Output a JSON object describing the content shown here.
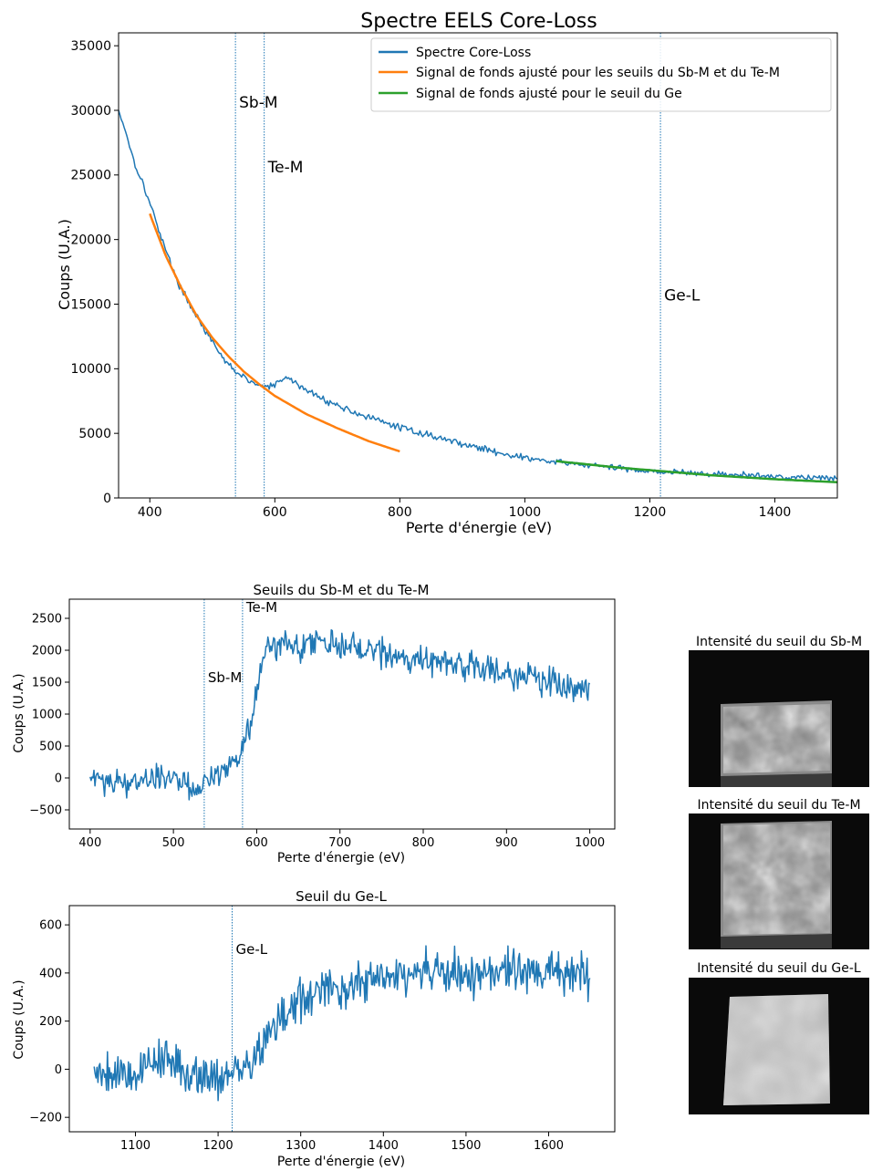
{
  "colors": {
    "core_loss": "#1f77b4",
    "fit_sbte": "#ff7f0e",
    "fit_ge": "#2ca02c",
    "edge_line": "#1f77b4",
    "map_background": "#0a0a0a"
  },
  "chart_data": [
    {
      "id": "main",
      "type": "line",
      "title": "Spectre EELS Core-Loss",
      "xlabel": "Perte d'énergie (eV)",
      "ylabel": "Coups (U.A.)",
      "xlim": [
        350,
        1500
      ],
      "ylim": [
        0,
        36000
      ],
      "xticks": [
        400,
        600,
        800,
        1000,
        1200,
        1400
      ],
      "yticks": [
        0,
        5000,
        10000,
        15000,
        20000,
        25000,
        30000,
        35000
      ],
      "grid": false,
      "legend": "top-right",
      "series": [
        {
          "name": "Spectre Core-Loss",
          "color": "#1f77b4",
          "x": [
            350,
            360,
            375,
            390,
            400,
            420,
            440,
            460,
            480,
            500,
            520,
            540,
            560,
            580,
            600,
            610,
            620,
            630,
            640,
            660,
            680,
            700,
            740,
            780,
            820,
            860,
            900,
            950,
            1000,
            1050,
            1100,
            1150,
            1200,
            1250,
            1300,
            1350,
            1400,
            1450,
            1500
          ],
          "y": [
            30000,
            28600,
            26000,
            24200,
            22800,
            20000,
            17200,
            15300,
            13700,
            12000,
            10600,
            9700,
            9000,
            8600,
            8700,
            9100,
            9300,
            9100,
            8600,
            8100,
            7600,
            7150,
            6400,
            5750,
            5200,
            4700,
            4200,
            3600,
            3100,
            2750,
            2550,
            2300,
            2100,
            1950,
            1850,
            1750,
            1650,
            1600,
            1550
          ],
          "noise": 250
        },
        {
          "name": "Signal de fonds ajusté pour les seuils du Sb-M et du Te-M",
          "color": "#ff7f0e",
          "x": [
            400,
            425,
            450,
            475,
            500,
            525,
            550,
            575,
            600,
            650,
            700,
            750,
            800
          ],
          "y": [
            22000,
            18800,
            16300,
            14100,
            12400,
            11000,
            9800,
            8800,
            7900,
            6500,
            5400,
            4400,
            3600
          ]
        },
        {
          "name": "Signal de fonds ajusté pour le seuil du Ge",
          "color": "#2ca02c",
          "x": [
            1050,
            1100,
            1150,
            1200,
            1250,
            1300,
            1350,
            1400,
            1450,
            1500
          ],
          "y": [
            2850,
            2600,
            2350,
            2150,
            1950,
            1750,
            1600,
            1450,
            1330,
            1220
          ]
        }
      ],
      "annotations": [
        {
          "text": "Sb-M",
          "x": 537,
          "y": 30200
        },
        {
          "text": "Te-M",
          "x": 583,
          "y": 25200
        },
        {
          "text": "Ge-L",
          "x": 1217,
          "y": 15300
        }
      ],
      "vlines": [
        537,
        583,
        1217
      ]
    },
    {
      "id": "sbte",
      "type": "line",
      "title": "Seuils du Sb-M et du Te-M",
      "xlabel": "Perte d'énergie (eV)",
      "ylabel": "Coups (U.A.)",
      "xlim": [
        375,
        1030
      ],
      "ylim": [
        -800,
        2800
      ],
      "xticks": [
        400,
        500,
        600,
        700,
        800,
        900,
        1000
      ],
      "yticks": [
        -500,
        0,
        500,
        1000,
        1500,
        2000,
        2500
      ],
      "grid": false,
      "series": [
        {
          "name": "",
          "color": "#1f77b4",
          "x": [
            400,
            450,
            500,
            530,
            555,
            575,
            585,
            595,
            605,
            615,
            625,
            650,
            680,
            700,
            750,
            800,
            850,
            900,
            950,
            1000
          ],
          "y": [
            0,
            -50,
            0,
            -200,
            100,
            300,
            550,
            1000,
            1700,
            2000,
            2150,
            2100,
            2200,
            2050,
            1950,
            1850,
            1750,
            1650,
            1500,
            1400
          ],
          "noise": 230
        }
      ],
      "annotations": [
        {
          "text": "Sb-M",
          "x": 537,
          "y": 1500
        },
        {
          "text": "Te-M",
          "x": 583,
          "y": 2600
        }
      ],
      "vlines": [
        537,
        583
      ]
    },
    {
      "id": "ge",
      "type": "line",
      "title": "Seuil du Ge-L",
      "xlabel": "Perte d'énergie (eV)",
      "ylabel": "Coups (U.A.)",
      "xlim": [
        1020,
        1680
      ],
      "ylim": [
        -260,
        680
      ],
      "xticks": [
        1100,
        1200,
        1300,
        1400,
        1500,
        1600
      ],
      "yticks": [
        -200,
        0,
        200,
        400,
        600
      ],
      "grid": false,
      "series": [
        {
          "name": "",
          "color": "#1f77b4",
          "x": [
            1050,
            1100,
            1130,
            1150,
            1200,
            1230,
            1250,
            1270,
            1300,
            1350,
            1400,
            1450,
            1500,
            1550,
            1600,
            1650
          ],
          "y": [
            0,
            -20,
            60,
            0,
            -30,
            -10,
            80,
            180,
            290,
            340,
            380,
            400,
            390,
            410,
            400,
            390
          ],
          "noise": 90
        }
      ],
      "annotations": [
        {
          "text": "Ge-L",
          "x": 1217,
          "y": 480
        }
      ],
      "vlines": [
        1217
      ]
    }
  ],
  "maps": [
    {
      "title": "Intensité du seuil du Sb-M",
      "edge": "Sb-M"
    },
    {
      "title": "Intensité du seuil du Te-M",
      "edge": "Te-M"
    },
    {
      "title": "Intensité du seuil du Ge-L",
      "edge": "Ge-L"
    }
  ]
}
